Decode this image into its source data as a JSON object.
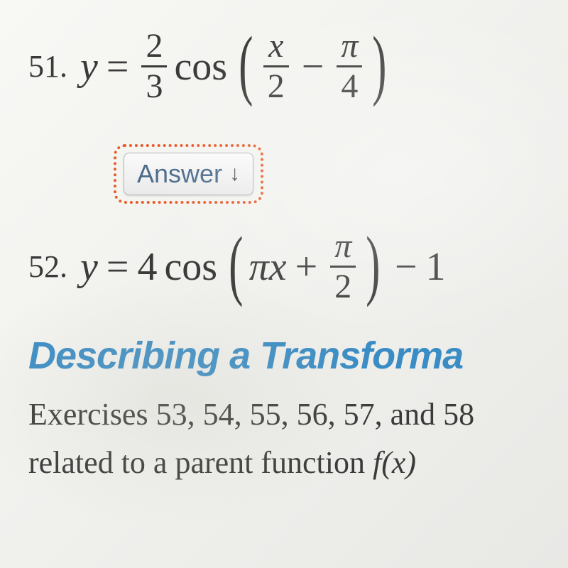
{
  "problems": [
    {
      "number": "51.",
      "lhs": "y",
      "coef_num": "2",
      "coef_den": "3",
      "func": "cos",
      "arg1_num": "x",
      "arg1_den": "2",
      "arg_op": "−",
      "arg2_num": "π",
      "arg2_den": "4"
    },
    {
      "number": "52.",
      "lhs": "y",
      "coef": "4",
      "func": "cos",
      "arg1": "πx",
      "arg_op": "+",
      "arg2_num": "π",
      "arg2_den": "2",
      "tail_op": "−",
      "tail_val": "1"
    }
  ],
  "answer_button": {
    "label": "Answer",
    "icon": "↓",
    "border_color": "#e85a2a",
    "text_color": "#4a6a8a"
  },
  "section": {
    "title": "Describing a Transforma",
    "title_color": "#3a8cc4",
    "title_fontsize": 54,
    "body_line1": "Exercises 53, 54, 55, 56, 57, and 58",
    "body_line2_prefix": "related to a parent function ",
    "body_line2_math": "f(x)"
  },
  "styling": {
    "page_bg": "#f4f4f0",
    "text_color": "#3a3a3a",
    "problem_number_fontsize": 44,
    "equation_fontsize": 56,
    "body_fontsize": 44
  }
}
